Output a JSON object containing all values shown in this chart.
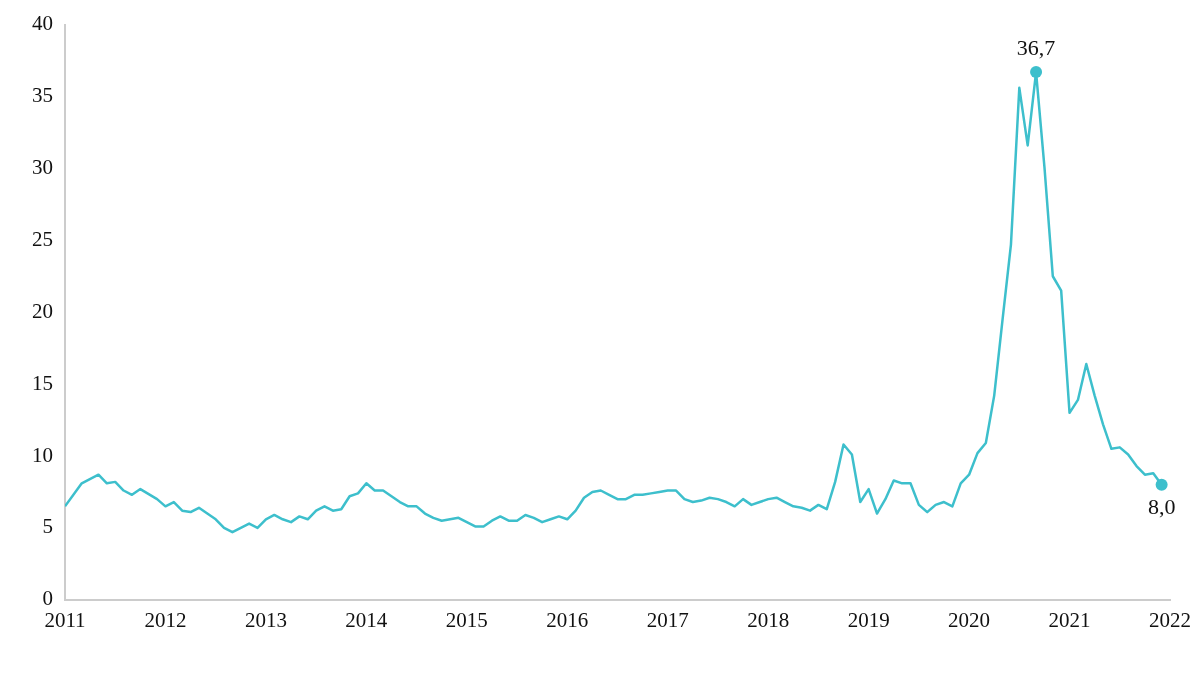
{
  "chart_data": {
    "type": "line",
    "x": [
      "2011-01",
      "2011-03",
      "2011-05",
      "2011-06",
      "2011-07",
      "2011-08",
      "2011-09",
      "2011-10",
      "2011-12",
      "2012-01",
      "2012-02",
      "2012-03",
      "2012-04",
      "2012-05",
      "2012-06",
      "2012-07",
      "2012-08",
      "2012-09",
      "2012-10",
      "2012-11",
      "2012-12",
      "2013-01",
      "2013-02",
      "2013-03",
      "2013-04",
      "2013-05",
      "2013-06",
      "2013-07",
      "2013-08",
      "2013-09",
      "2013-10",
      "2013-11",
      "2013-12",
      "2014-01",
      "2014-02",
      "2014-03",
      "2014-04",
      "2014-05",
      "2014-06",
      "2014-07",
      "2014-08",
      "2014-09",
      "2014-10",
      "2014-11",
      "2014-12",
      "2015-01",
      "2015-02",
      "2015-03",
      "2015-04",
      "2015-05",
      "2015-06",
      "2015-07",
      "2015-08",
      "2015-09",
      "2015-10",
      "2015-11",
      "2015-12",
      "2016-01",
      "2016-02",
      "2016-03",
      "2016-04",
      "2016-05",
      "2016-06",
      "2016-07",
      "2016-08",
      "2016-09",
      "2016-10",
      "2016-11",
      "2016-12",
      "2017-01",
      "2017-02",
      "2017-03",
      "2017-04",
      "2017-05",
      "2017-06",
      "2017-07",
      "2017-08",
      "2017-09",
      "2017-10",
      "2017-11",
      "2017-12",
      "2018-01",
      "2018-02",
      "2018-03",
      "2018-04",
      "2018-05",
      "2018-06",
      "2018-07",
      "2018-08",
      "2018-09",
      "2018-10",
      "2018-11",
      "2018-12",
      "2019-01",
      "2019-02",
      "2019-03",
      "2019-04",
      "2019-05",
      "2019-06",
      "2019-07",
      "2019-08",
      "2019-09",
      "2019-10",
      "2019-11",
      "2019-12",
      "2020-01",
      "2020-02",
      "2020-03",
      "2020-04",
      "2020-05",
      "2020-06",
      "2020-07",
      "2020-08",
      "2020-09",
      "2020-10",
      "2020-11",
      "2020-12",
      "2021-01",
      "2021-02",
      "2021-03",
      "2021-04",
      "2021-05",
      "2021-06",
      "2021-07",
      "2021-08",
      "2021-09",
      "2021-10",
      "2021-11",
      "2021-12"
    ],
    "series": [
      {
        "color": "#3dbfcc",
        "values": [
          6.5,
          8.1,
          8.7,
          8.1,
          8.2,
          7.6,
          7.3,
          7.7,
          7.0,
          6.5,
          6.8,
          6.2,
          6.1,
          6.4,
          6.0,
          5.6,
          5.0,
          4.7,
          5.0,
          5.3,
          5.0,
          5.6,
          5.9,
          5.6,
          5.4,
          5.8,
          5.6,
          6.2,
          6.5,
          6.2,
          6.3,
          7.2,
          7.4,
          8.1,
          7.6,
          7.6,
          7.2,
          6.8,
          6.5,
          6.5,
          6.0,
          5.7,
          5.5,
          5.6,
          5.7,
          5.4,
          5.1,
          5.1,
          5.5,
          5.8,
          5.5,
          5.5,
          5.9,
          5.7,
          5.4,
          5.6,
          5.8,
          5.6,
          6.2,
          7.1,
          7.5,
          7.6,
          7.3,
          7.0,
          7.0,
          7.3,
          7.3,
          7.4,
          7.5,
          7.6,
          7.6,
          7.0,
          6.8,
          6.9,
          7.1,
          7.0,
          6.8,
          6.5,
          7.0,
          6.6,
          6.8,
          7.0,
          7.1,
          6.8,
          6.5,
          6.4,
          6.2,
          6.6,
          6.3,
          8.2,
          10.8,
          10.1,
          6.8,
          7.7,
          6.0,
          7.0,
          8.3,
          8.1,
          8.1,
          6.6,
          6.1,
          6.6,
          6.8,
          6.5,
          8.1,
          8.7,
          10.2,
          10.9,
          14.2,
          19.5,
          24.7,
          35.6,
          31.6,
          36.7,
          30.1,
          22.5,
          21.5,
          13.0,
          13.9,
          16.4,
          14.2,
          12.2,
          10.5,
          10.6,
          10.1,
          9.3,
          8.7,
          8.8,
          8.0
        ]
      }
    ],
    "xlim": [
      "2011-01",
      "2022-01"
    ],
    "xticks": [
      "2011",
      "2012",
      "2013",
      "2014",
      "2015",
      "2016",
      "2017",
      "2018",
      "2019",
      "2020",
      "2021",
      "2022"
    ],
    "ylim": [
      0,
      40
    ],
    "yticks": [
      0,
      5,
      10,
      15,
      20,
      25,
      30,
      35,
      40
    ],
    "grid": false,
    "legend": false,
    "marker": "none",
    "line_style": "solid",
    "annotations": [
      {
        "text": "36,7",
        "x": "2020-09",
        "y": 36.7
      },
      {
        "text": "8,0",
        "x": "2021-12",
        "y": 8.0
      }
    ]
  }
}
